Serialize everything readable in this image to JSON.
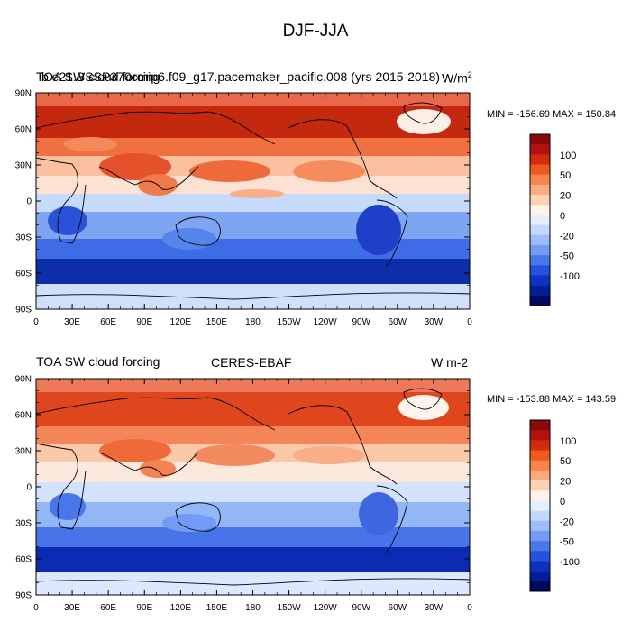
{
  "title": "DJF-JJA",
  "color_levels": [
    -100,
    -50,
    -20,
    0,
    20,
    50,
    100
  ],
  "colorbar_labels": [
    "100",
    "50",
    "20",
    "0",
    "-20",
    "-50",
    "-100"
  ],
  "colorbar_colors": [
    "#8a0a0a",
    "#b41212",
    "#d62a0e",
    "#ef5a1c",
    "#f7844a",
    "#fbab7e",
    "#fdd2b4",
    "#fff2e8",
    "#e4efff",
    "#c3d8ff",
    "#9cbcff",
    "#739bf5",
    "#4a76eb",
    "#2552dc",
    "#0c32c2",
    "#001f99",
    "#00095e"
  ],
  "x_ticks": [
    "0",
    "30E",
    "60E",
    "90E",
    "120E",
    "150E",
    "180",
    "150W",
    "120W",
    "90W",
    "60W",
    "30W",
    "0"
  ],
  "y_ticks": [
    "90N",
    "60N",
    "30N",
    "0",
    "30S",
    "60S",
    "90S"
  ],
  "panels": [
    {
      "left_title": "TOA SW cloud forcing",
      "center_title": "b.e21.BSSP370cmip6.f09_g17.pacemaker_pacific.008 (yrs 2015-2018)",
      "units": "W/m",
      "units_sup": "2",
      "stats": "MIN = -156.69 MAX = 150.84"
    },
    {
      "left_title": "TOA SW cloud forcing",
      "center_title": "CERES-EBAF",
      "units": "W m-2",
      "stats": "MIN = -153.88 MAX = 143.59"
    }
  ]
}
